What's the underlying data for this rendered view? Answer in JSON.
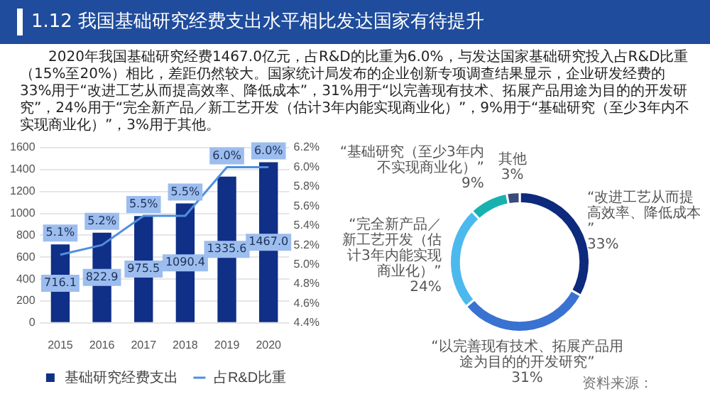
{
  "chart_data": [
    {
      "type": "bar",
      "title": "1.12 我国基础研究经费支出水平相比发达国家有待提升",
      "subtitle": "2020年我国基础研究经费1467.0亿元，占R&D的比重为6.0%，与发达国家基础研究投入占R&D比重（15%至20%）相比，差距仍然较大。国家统计局发布的企业创新专项调查结果显示，企业研发经费的33%用于“改进工艺从而提高效率、降低成本”，31%用于“以完善现有技术、拓展产品用途为目的的开发研究”，24%用于“完全新产品／新工艺开发（估计3年内能实现商业化）”，9%用于“基础研究（至少3年内不实现商业化）”，3%用于其他。",
      "categories": [
        "2015",
        "2016",
        "2017",
        "2018",
        "2019",
        "2020"
      ],
      "series": [
        {
          "name": "基础研究经费支出",
          "type": "bar",
          "color": "#102f86",
          "values": [
            716.1,
            822.9,
            975.5,
            1090.4,
            1335.6,
            1467.0
          ],
          "value_labels": [
            "716.1",
            "822.9",
            "975.5",
            "1090.4",
            "1335.6",
            "1467.0"
          ]
        },
        {
          "name": "占R&D比重",
          "type": "line",
          "axis": "y2",
          "color": "#4f8fde",
          "values": [
            5.1,
            5.2,
            5.5,
            5.5,
            6.0,
            6.0
          ],
          "value_labels": [
            "5.1%",
            "5.2%",
            "5.5%",
            "5.5%",
            "6.0%",
            "6.0%"
          ]
        }
      ],
      "ylim": [
        0,
        1600
      ],
      "yticks": [
        0,
        200,
        400,
        600,
        800,
        1000,
        1200,
        1400,
        1600
      ],
      "y2lim": [
        4.4,
        6.2
      ],
      "y2ticks": [
        {
          "value": 4.4,
          "label": "4.4%"
        },
        {
          "value": 4.6,
          "label": "4.6%"
        },
        {
          "value": 4.8,
          "label": "4.8%"
        },
        {
          "value": 5.0,
          "label": "5.0%"
        },
        {
          "value": 5.2,
          "label": "5.2%"
        },
        {
          "value": 5.4,
          "label": "5.4%"
        },
        {
          "value": 5.6,
          "label": "5.6%"
        },
        {
          "value": 5.8,
          "label": "5.8%"
        },
        {
          "value": 6.0,
          "label": "6.0%"
        },
        {
          "value": 6.2,
          "label": "6.2%"
        }
      ],
      "grid": "y",
      "legend": "bottom",
      "marker": "none",
      "line_style": "solid"
    },
    {
      "type": "donut",
      "categories": [
        "“改进工艺从而提高效率、降低成本”",
        "“以完善现有技术、拓展产品用途为目的的开发研究”",
        "“完全新产品／新工艺开发（估计3年内能实现商业化）”",
        "“基础研究（至少3年内不实现商业化）”",
        "其他"
      ],
      "values": [
        33,
        31,
        24,
        9,
        3
      ],
      "value_labels": [
        "33%",
        "31%",
        "24%",
        "9%",
        "3%"
      ],
      "colors": [
        "#0d2a7c",
        "#3a72d2",
        "#4cb9ee",
        "#17b2b0",
        "#3b4a7c"
      ],
      "annotations": [
        "资料来源："
      ]
    }
  ]
}
